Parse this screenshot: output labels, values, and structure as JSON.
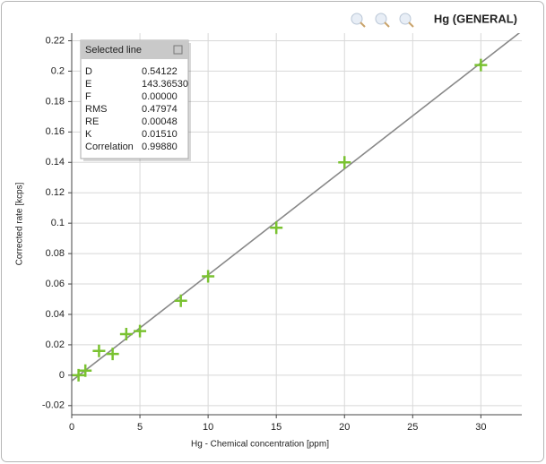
{
  "chart_data": {
    "type": "scatter",
    "title": "Hg (GENERAL)",
    "xlabel": "Hg - Chemical concentration [ppm]",
    "ylabel": "Corrected rate [kcps]",
    "xlim": [
      0,
      33
    ],
    "ylim": [
      -0.026,
      0.225
    ],
    "xticks": [
      0,
      5,
      10,
      15,
      20,
      25,
      30
    ],
    "yticks": [
      -0.02,
      0,
      0.02,
      0.04,
      0.06,
      0.08,
      0.1,
      0.12,
      0.14,
      0.16,
      0.18,
      0.2,
      0.22
    ],
    "grid": true,
    "series": [
      {
        "color": "#7ac231",
        "x": [
          0.5,
          1,
          2,
          3,
          4,
          5,
          8,
          10,
          15,
          20,
          30
        ],
        "values": [
          0.0,
          0.003,
          0.016,
          0.014,
          0.027,
          0.029,
          0.049,
          0.065,
          0.097,
          0.14,
          0.204
        ]
      }
    ],
    "fit_color": "#888888"
  },
  "stats_box": {
    "title": "Selected line",
    "rows": [
      [
        "D",
        "0.54122"
      ],
      [
        "E",
        "143.36530"
      ],
      [
        "F",
        "0.00000"
      ],
      [
        "RMS",
        "0.47974"
      ],
      [
        "RE",
        "0.00048"
      ],
      [
        "K",
        "0.01510"
      ],
      [
        "Correlation",
        "0.99880"
      ]
    ]
  }
}
